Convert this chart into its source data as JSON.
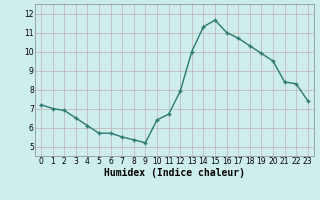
{
  "x": [
    0,
    1,
    2,
    3,
    4,
    5,
    6,
    7,
    8,
    9,
    10,
    11,
    12,
    13,
    14,
    15,
    16,
    17,
    18,
    19,
    20,
    21,
    22,
    23
  ],
  "y": [
    7.2,
    7.0,
    6.9,
    6.5,
    6.1,
    5.7,
    5.7,
    5.5,
    5.35,
    5.2,
    6.4,
    6.7,
    7.9,
    10.0,
    11.3,
    11.65,
    11.0,
    10.7,
    10.3,
    9.9,
    9.5,
    8.4,
    8.3,
    7.4
  ],
  "xlabel": "Humidex (Indice chaleur)",
  "ylim": [
    4.5,
    12.5
  ],
  "xlim": [
    -0.5,
    23.5
  ],
  "yticks": [
    5,
    6,
    7,
    8,
    9,
    10,
    11,
    12
  ],
  "xticks": [
    0,
    1,
    2,
    3,
    4,
    5,
    6,
    7,
    8,
    9,
    10,
    11,
    12,
    13,
    14,
    15,
    16,
    17,
    18,
    19,
    20,
    21,
    22,
    23
  ],
  "line_color": "#2a7a6e",
  "marker_color": "#2a7a6e",
  "bg_color": "#ceeeed",
  "grid_color": "#c0b0b0",
  "axes_bg": "#ceeeed",
  "xlabel_fontsize": 7,
  "tick_fontsize": 5.5
}
